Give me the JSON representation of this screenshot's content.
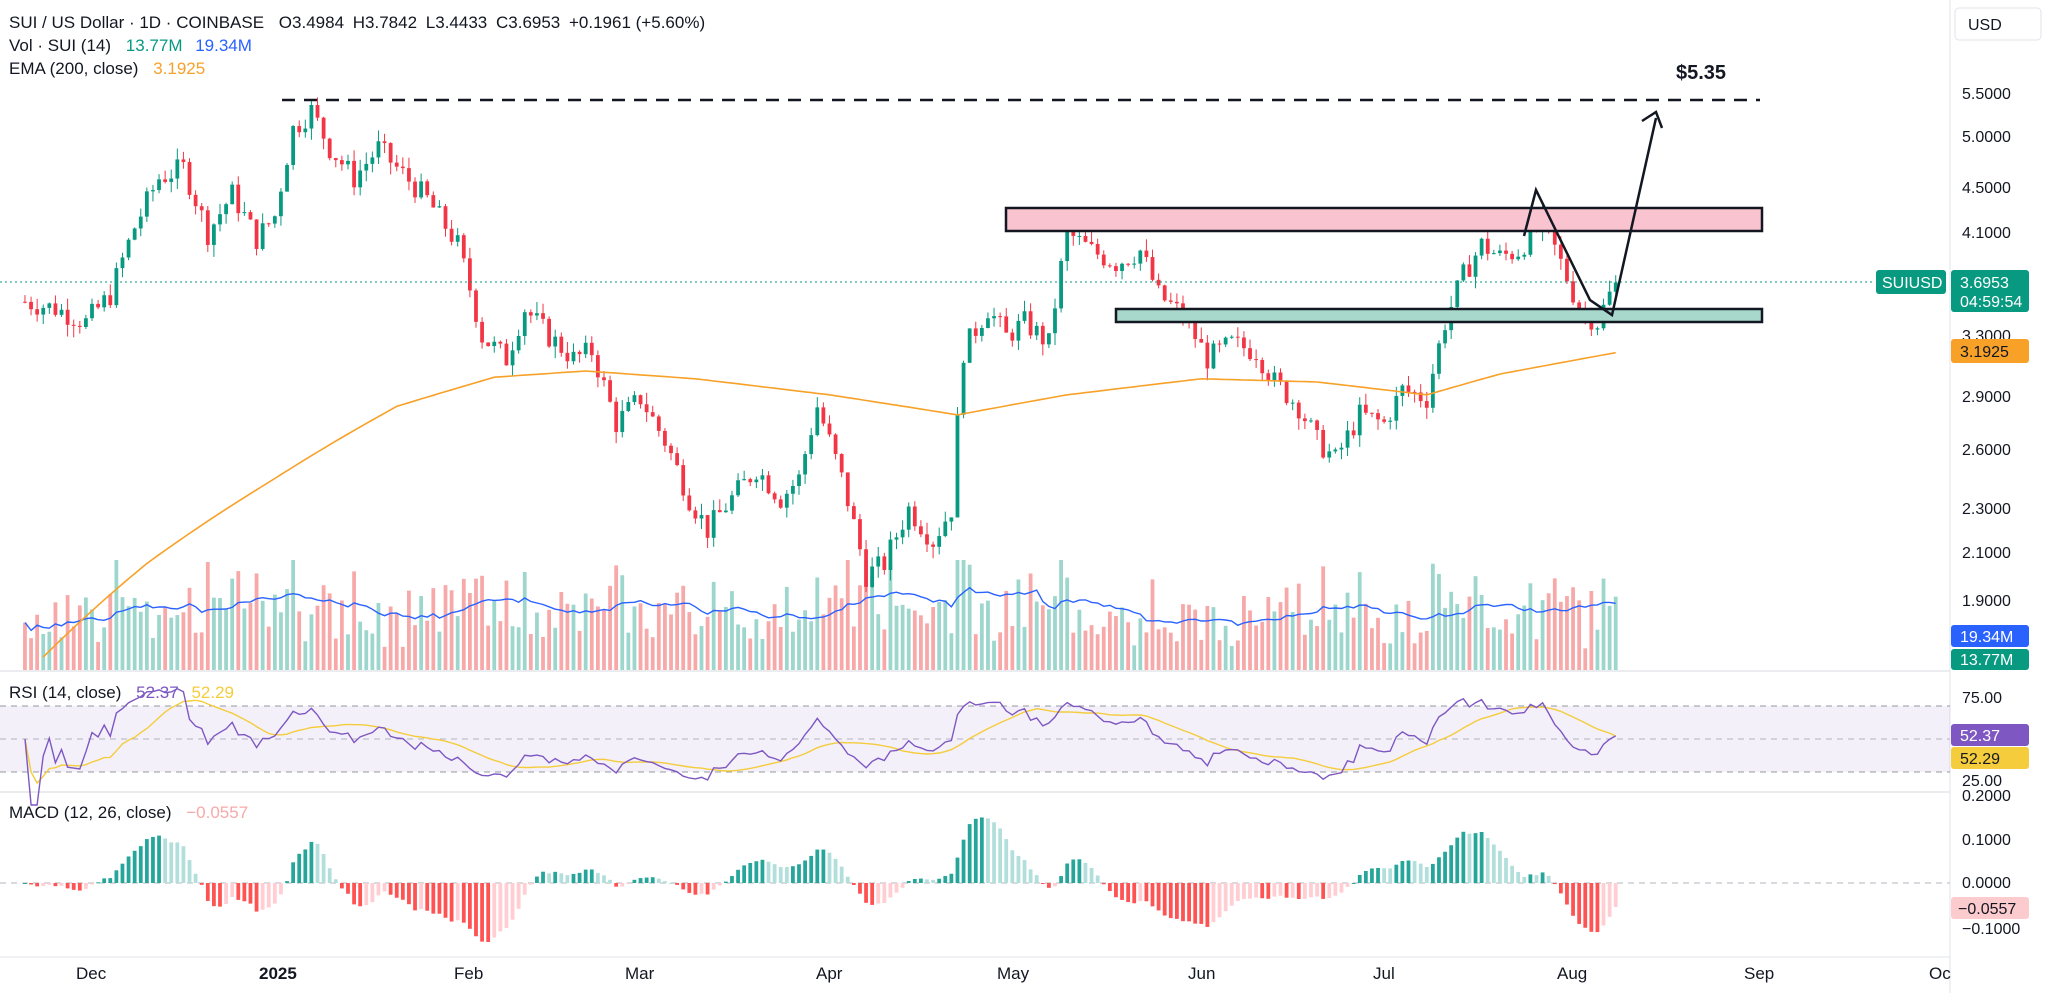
{
  "header": {
    "symbol_title": "SUI / US Dollar · 1D · COINBASE",
    "open_label": "O",
    "open": "3.4984",
    "high_label": "H",
    "high": "3.7842",
    "low_label": "L",
    "low": "3.4433",
    "close_label": "C",
    "close": "3.6953",
    "change": "+0.1961 (+5.60%)",
    "vol_label": "Vol · SUI (14)",
    "vol_value": "13.77M",
    "vol_ma_value": "19.34M",
    "ema_label": "EMA (200, close)",
    "ema_value": "3.1925",
    "currency": "USD"
  },
  "price_axis": {
    "ticks": [
      "5.5000",
      "5.0000",
      "4.5000",
      "4.1000",
      "3.3000",
      "2.9000",
      "2.6000",
      "2.3000",
      "2.1000",
      "1.9000"
    ],
    "last_tag": {
      "symbol": "SUIUSD",
      "price": "3.6953",
      "countdown": "04:59:54"
    },
    "ema_tag": "3.1925",
    "volma_tag": "19.34M",
    "vol_tag": "13.77M"
  },
  "rsi": {
    "label": "RSI (14, close)",
    "value": "52.37",
    "ma_value": "52.29",
    "ticks": [
      "75.00",
      "25.00"
    ],
    "tag": "52.37",
    "ma_tag": "52.29"
  },
  "macd": {
    "label": "MACD (12, 26, close)",
    "value": "−0.0557",
    "ticks": [
      "0.2000",
      "0.1000",
      "0.0000",
      "−0.1000"
    ],
    "tag": "−0.0557"
  },
  "time_axis": {
    "labels": [
      "Dec",
      "2025",
      "Feb",
      "Mar",
      "Apr",
      "May",
      "Jun",
      "Jul",
      "Aug",
      "Sep",
      "Oc"
    ]
  },
  "annotations": {
    "target_label": "$5.35"
  },
  "colors": {
    "up": "#089981",
    "down": "#f23645",
    "vol_up": "#9dd6cc",
    "vol_down": "#f7a9a9",
    "ema": "#f7a128",
    "vol_ma": "#2962ff",
    "rsi": "#7e57c2",
    "rsi_ma": "#f5cc3c",
    "resistance_zone": "#f9c3cf",
    "support_zone": "#a8d8cc"
  },
  "chart_data": {
    "type": "candlestick",
    "title": "SUI / US Dollar · 1D · COINBASE",
    "x_range": [
      "2024-11-20",
      "2025-10-05"
    ],
    "y_range": [
      1.8,
      5.8
    ],
    "y_scale": "log",
    "last_close": 3.6953,
    "ema200_last": 3.1925,
    "resistance_zone": [
      4.12,
      4.32
    ],
    "support_zone": [
      3.42,
      3.5
    ],
    "target_level": 5.35,
    "price_path": [
      [
        "2024-11-20",
        3.55
      ],
      [
        "2024-11-25",
        3.5
      ],
      [
        "2024-11-30",
        3.4
      ],
      [
        "2024-12-04",
        3.6
      ],
      [
        "2024-12-08",
        4.15
      ],
      [
        "2024-12-12",
        4.6
      ],
      [
        "2024-12-16",
        4.7
      ],
      [
        "2024-12-20",
        4.1
      ],
      [
        "2024-12-24",
        4.45
      ],
      [
        "2024-12-28",
        4.05
      ],
      [
        "2024-12-31",
        4.25
      ],
      [
        "2025-01-03",
        5.1
      ],
      [
        "2025-01-06",
        5.3
      ],
      [
        "2025-01-09",
        4.9
      ],
      [
        "2025-01-13",
        4.6
      ],
      [
        "2025-01-17",
        4.9
      ],
      [
        "2025-01-20",
        4.7
      ],
      [
        "2025-01-25",
        4.4
      ],
      [
        "2025-01-30",
        4.0
      ],
      [
        "2025-02-03",
        3.3
      ],
      [
        "2025-02-07",
        3.15
      ],
      [
        "2025-02-10",
        3.5
      ],
      [
        "2025-02-14",
        3.3
      ],
      [
        "2025-02-18",
        3.15
      ],
      [
        "2025-02-21",
        3.2
      ],
      [
        "2025-02-25",
        2.75
      ],
      [
        "2025-03-01",
        2.9
      ],
      [
        "2025-03-05",
        2.65
      ],
      [
        "2025-03-09",
        2.35
      ],
      [
        "2025-03-12",
        2.2
      ],
      [
        "2025-03-16",
        2.35
      ],
      [
        "2025-03-20",
        2.5
      ],
      [
        "2025-03-24",
        2.35
      ],
      [
        "2025-03-27",
        2.45
      ],
      [
        "2025-03-30",
        2.85
      ],
      [
        "2025-04-03",
        2.45
      ],
      [
        "2025-04-07",
        2.0
      ],
      [
        "2025-04-10",
        2.05
      ],
      [
        "2025-04-14",
        2.3
      ],
      [
        "2025-04-18",
        2.15
      ],
      [
        "2025-04-21",
        2.3
      ],
      [
        "2025-04-23",
        3.2
      ],
      [
        "2025-04-27",
        3.5
      ],
      [
        "2025-04-30",
        3.3
      ],
      [
        "2025-05-03",
        3.4
      ],
      [
        "2025-05-07",
        3.25
      ],
      [
        "2025-05-10",
        4.1
      ],
      [
        "2025-05-14",
        3.95
      ],
      [
        "2025-05-18",
        3.85
      ],
      [
        "2025-05-22",
        3.95
      ],
      [
        "2025-05-25",
        3.6
      ],
      [
        "2025-05-29",
        3.45
      ],
      [
        "2025-06-02",
        3.15
      ],
      [
        "2025-06-06",
        3.25
      ],
      [
        "2025-06-10",
        3.2
      ],
      [
        "2025-06-13",
        3.0
      ],
      [
        "2025-06-17",
        2.85
      ],
      [
        "2025-06-20",
        2.65
      ],
      [
        "2025-06-23",
        2.55
      ],
      [
        "2025-06-27",
        2.8
      ],
      [
        "2025-07-01",
        2.75
      ],
      [
        "2025-07-04",
        2.95
      ],
      [
        "2025-07-08",
        2.9
      ],
      [
        "2025-07-11",
        3.4
      ],
      [
        "2025-07-14",
        3.75
      ],
      [
        "2025-07-17",
        4.0
      ],
      [
        "2025-07-20",
        3.9
      ],
      [
        "2025-07-23",
        3.95
      ],
      [
        "2025-07-27",
        4.2
      ],
      [
        "2025-07-30",
        3.85
      ],
      [
        "2025-08-02",
        3.5
      ],
      [
        "2025-08-05",
        3.4
      ],
      [
        "2025-08-08",
        3.7
      ]
    ],
    "ema_path": [
      [
        "2024-11-20",
        1.62
      ],
      [
        "2024-12-10",
        2.05
      ],
      [
        "2024-12-31",
        2.45
      ],
      [
        "2025-01-20",
        2.85
      ],
      [
        "2025-02-05",
        3.03
      ],
      [
        "2025-02-20",
        3.07
      ],
      [
        "2025-03-10",
        3.02
      ],
      [
        "2025-04-01",
        2.92
      ],
      [
        "2025-04-22",
        2.8
      ],
      [
        "2025-05-10",
        2.92
      ],
      [
        "2025-06-01",
        3.02
      ],
      [
        "2025-06-20",
        3.0
      ],
      [
        "2025-07-08",
        2.92
      ],
      [
        "2025-07-20",
        3.05
      ],
      [
        "2025-08-08",
        3.19
      ]
    ],
    "volume_ma": {
      "last": "19.34M"
    },
    "rsi_last": 52.37,
    "rsi_ma_last": 52.29,
    "macd_last": -0.0557
  }
}
